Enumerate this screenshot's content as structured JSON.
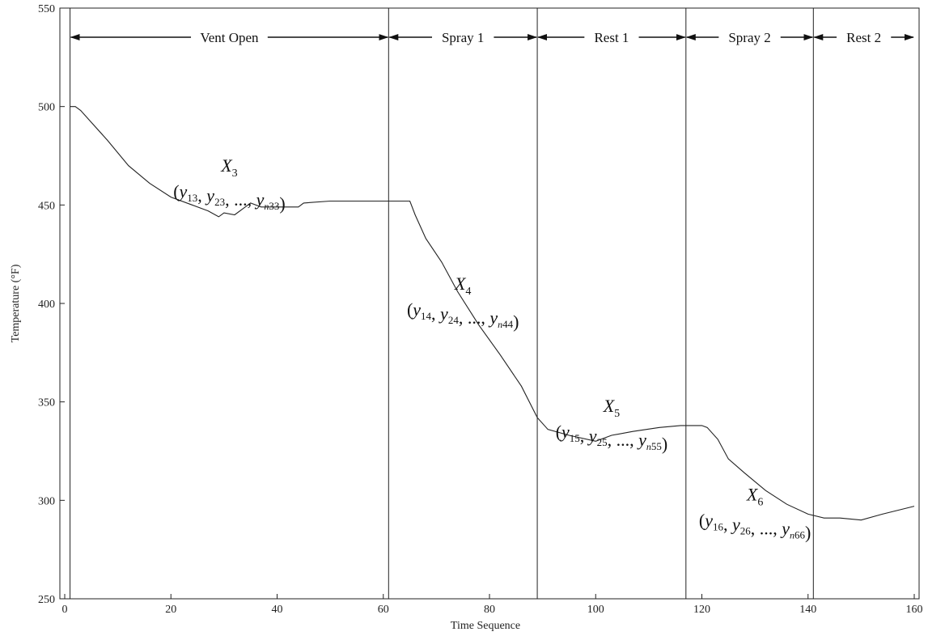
{
  "chart_data": {
    "type": "line",
    "xlabel": "Time Sequence",
    "ylabel": "Temperature (°F)",
    "xlim": [
      0,
      160
    ],
    "ylim": [
      250,
      550
    ],
    "xticks": [
      0,
      20,
      40,
      60,
      80,
      100,
      120,
      140,
      160
    ],
    "yticks": [
      250,
      300,
      350,
      400,
      450,
      500,
      550
    ],
    "grid": false,
    "series": [
      {
        "points": [
          [
            1,
            500
          ],
          [
            2,
            500
          ],
          [
            3,
            498
          ],
          [
            5,
            492
          ],
          [
            8,
            483
          ],
          [
            12,
            470
          ],
          [
            16,
            461
          ],
          [
            20,
            454
          ],
          [
            24,
            450
          ],
          [
            27,
            447
          ],
          [
            29,
            444
          ],
          [
            30,
            446
          ],
          [
            32,
            445
          ],
          [
            34,
            449
          ],
          [
            35,
            451
          ],
          [
            37,
            449
          ],
          [
            40,
            449
          ],
          [
            44,
            449
          ],
          [
            45,
            451
          ],
          [
            50,
            452
          ],
          [
            55,
            452
          ],
          [
            60,
            452
          ],
          [
            63,
            452
          ],
          [
            65,
            452
          ],
          [
            66,
            445
          ],
          [
            68,
            433
          ],
          [
            71,
            421
          ],
          [
            74,
            406
          ],
          [
            78,
            389
          ],
          [
            82,
            374
          ],
          [
            86,
            358
          ],
          [
            89,
            342
          ],
          [
            91,
            336
          ],
          [
            95,
            333
          ],
          [
            100,
            330
          ],
          [
            103,
            333
          ],
          [
            107,
            335
          ],
          [
            112,
            337
          ],
          [
            116,
            338
          ],
          [
            118,
            338
          ],
          [
            120,
            338
          ],
          [
            121,
            337
          ],
          [
            123,
            331
          ],
          [
            125,
            321
          ],
          [
            128,
            314
          ],
          [
            132,
            305
          ],
          [
            136,
            298
          ],
          [
            140,
            293
          ],
          [
            143,
            291
          ],
          [
            146,
            291
          ],
          [
            150,
            290
          ],
          [
            154,
            293
          ],
          [
            157,
            295
          ],
          [
            160,
            297
          ]
        ]
      }
    ],
    "phase_boundaries": [
      1,
      61,
      89,
      117,
      141
    ],
    "phases": [
      {
        "label": "Vent Open",
        "start": 1,
        "end": 61
      },
      {
        "label": "Spray 1",
        "start": 61,
        "end": 89
      },
      {
        "label": "Rest 1",
        "start": 89,
        "end": 117
      },
      {
        "label": "Spray 2",
        "start": 117,
        "end": 141
      },
      {
        "label": "Rest 2",
        "start": 141,
        "end": 160
      }
    ],
    "annotations": [
      {
        "name": "X",
        "idx": "3",
        "y1": "13",
        "y2": "23",
        "n": "3",
        "x": 31,
        "y": 462
      },
      {
        "name": "X",
        "idx": "4",
        "y1": "14",
        "y2": "24",
        "n": "4",
        "x": 75,
        "y": 402
      },
      {
        "name": "X",
        "idx": "5",
        "y1": "15",
        "y2": "25",
        "n": "5",
        "x": 103,
        "y": 340
      },
      {
        "name": "X",
        "idx": "6",
        "y1": "16",
        "y2": "26",
        "n": "6",
        "x": 130,
        "y": 295
      }
    ]
  }
}
